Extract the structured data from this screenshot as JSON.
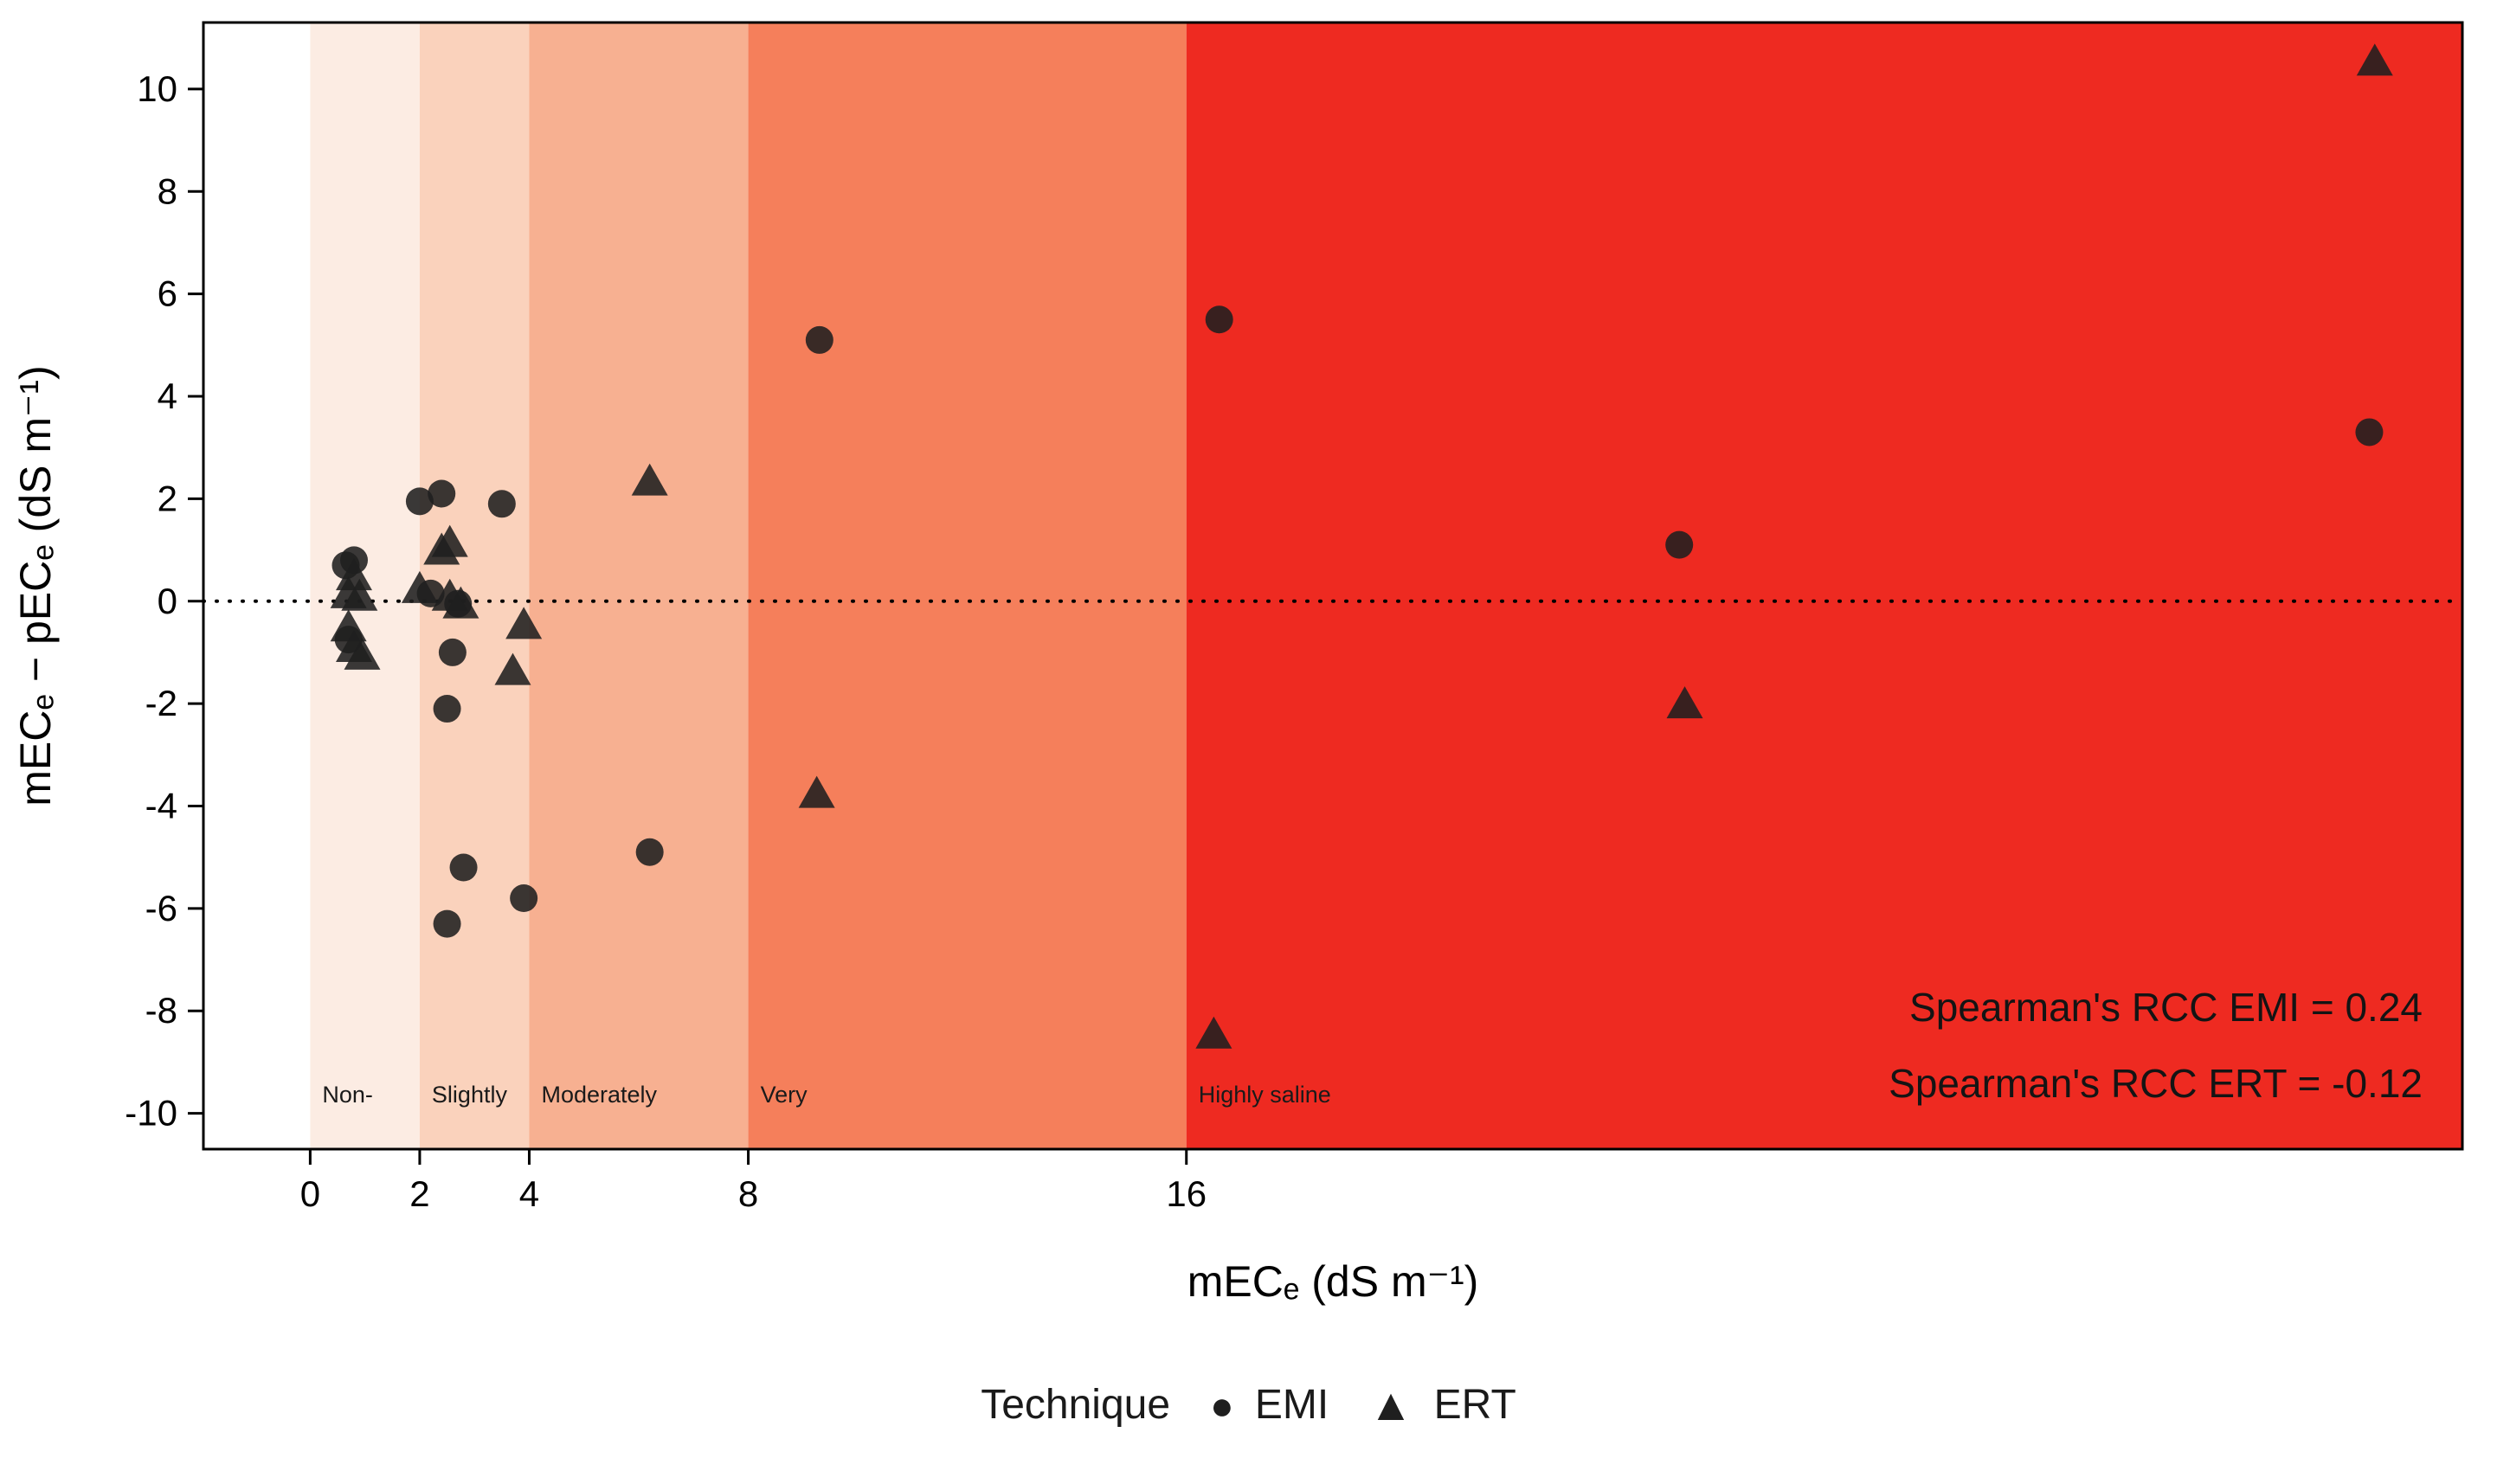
{
  "chart_data": {
    "type": "scatter",
    "xlabel": "mECₑ (dS m⁻¹)",
    "ylabel": "mECₑ − pECₑ (dS m⁻¹)",
    "xlim": [
      -1.95,
      39.3
    ],
    "ylim": [
      -10.7,
      11.3
    ],
    "x_ticks": [
      0,
      2,
      4,
      8,
      16
    ],
    "y_ticks": [
      -10,
      -8,
      -6,
      -4,
      -2,
      0,
      2,
      4,
      6,
      8,
      10
    ],
    "zero_line": 0,
    "grid": false,
    "legend_position": "bottom",
    "salinity_bands": [
      {
        "from": 0,
        "to": 2,
        "color": "#fcece3",
        "label": "Non-"
      },
      {
        "from": 2,
        "to": 4,
        "color": "#fad2bc",
        "label": "Slightly"
      },
      {
        "from": 4,
        "to": 8,
        "color": "#f7b091",
        "label": "Moderately"
      },
      {
        "from": 8,
        "to": 16,
        "color": "#f57f5b",
        "label": "Very"
      },
      {
        "from": 16,
        "to": null,
        "color": "#ee2a21",
        "label": "Highly saline"
      }
    ],
    "series": [
      {
        "name": "EMI",
        "marker": "circle",
        "points": [
          [
            0.8,
            0.8
          ],
          [
            0.65,
            0.7
          ],
          [
            0.7,
            -0.75
          ],
          [
            2.0,
            1.95
          ],
          [
            2.4,
            2.1
          ],
          [
            3.5,
            1.9
          ],
          [
            2.2,
            0.15
          ],
          [
            2.7,
            -0.05
          ],
          [
            2.6,
            -1.0
          ],
          [
            2.5,
            -2.1
          ],
          [
            2.8,
            -5.2
          ],
          [
            2.5,
            -6.3
          ],
          [
            3.9,
            -5.8
          ],
          [
            6.2,
            -4.9
          ],
          [
            9.3,
            5.1
          ],
          [
            16.6,
            5.5
          ],
          [
            25.0,
            1.1
          ],
          [
            37.6,
            3.3
          ]
        ]
      },
      {
        "name": "ERT",
        "marker": "triangle",
        "points": [
          [
            0.8,
            0.45
          ],
          [
            0.7,
            0.1
          ],
          [
            0.9,
            0.05
          ],
          [
            0.7,
            -0.55
          ],
          [
            0.8,
            -0.95
          ],
          [
            0.95,
            -1.1
          ],
          [
            2.0,
            0.2
          ],
          [
            2.4,
            0.95
          ],
          [
            2.55,
            1.1
          ],
          [
            2.55,
            0.05
          ],
          [
            2.75,
            -0.1
          ],
          [
            3.9,
            -0.5
          ],
          [
            3.7,
            -1.4
          ],
          [
            6.2,
            2.3
          ],
          [
            9.25,
            -3.8
          ],
          [
            16.5,
            -8.5
          ],
          [
            25.1,
            -2.05
          ],
          [
            37.7,
            10.5
          ]
        ]
      }
    ],
    "annotations": [
      "Spearman's RCC EMI = 0.24",
      "Spearman's RCC ERT = -0.12"
    ],
    "legend": {
      "title": "Technique",
      "items": [
        {
          "label": "EMI",
          "marker": "circle"
        },
        {
          "label": "ERT",
          "marker": "triangle"
        }
      ]
    },
    "colors": {
      "point": "#1f1f1f",
      "band_label": "#1a1a1a",
      "annotation": "#141414",
      "axis": "#000000",
      "panel_background": "#ffffff"
    }
  }
}
